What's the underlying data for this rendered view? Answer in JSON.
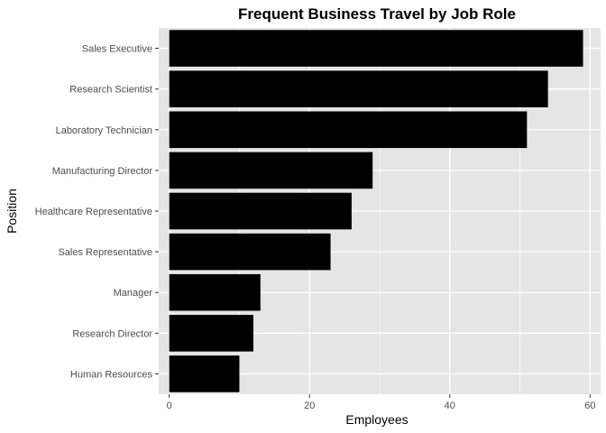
{
  "chart_data": {
    "type": "bar",
    "orientation": "horizontal",
    "title": "Frequent Business Travel by Job Role",
    "xlabel": "Employees",
    "ylabel": "Position",
    "categories": [
      "Sales Executive",
      "Research Scientist",
      "Laboratory Technician",
      "Manufacturing Director",
      "Healthcare Representative",
      "Sales Representative",
      "Manager",
      "Research Director",
      "Human Resources"
    ],
    "values": [
      59,
      54,
      51,
      29,
      26,
      23,
      13,
      12,
      10
    ],
    "xlim": [
      -1.5,
      61.5
    ],
    "x_ticks": [
      "0",
      "20",
      "40",
      "60"
    ],
    "x_tick_values": [
      0,
      20,
      40,
      60
    ],
    "x_minor_grid": [
      10,
      30,
      50
    ],
    "grid": true,
    "bar_color": "#000000",
    "panel_background": "#e5e5e5",
    "grid_color": "#ffffff"
  }
}
